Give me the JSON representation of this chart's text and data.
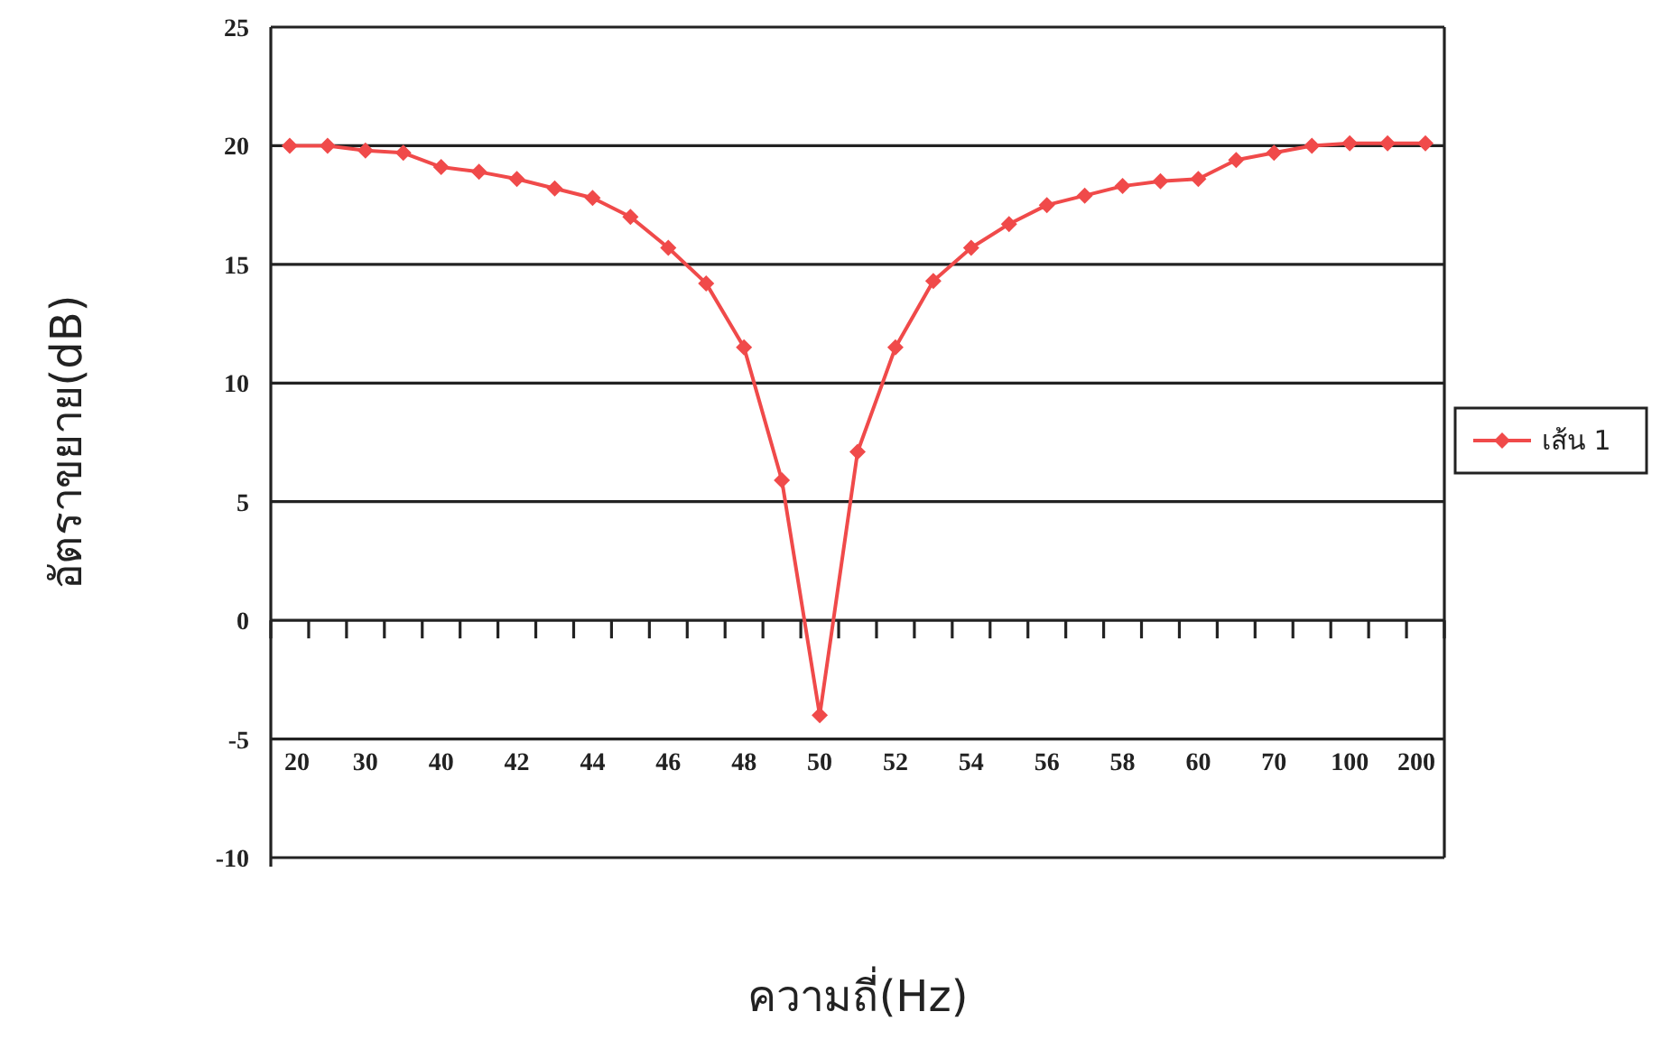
{
  "chart_data": {
    "type": "line",
    "xlabel": "ความถี่(Hz)",
    "ylabel": "อัตราขยาย(dB)",
    "categories": [
      "20",
      null,
      "30",
      null,
      "40",
      null,
      "42",
      null,
      "44",
      null,
      "46",
      null,
      "48",
      null,
      "50",
      null,
      "52",
      null,
      "54",
      null,
      "56",
      null,
      "58",
      null,
      "60",
      null,
      "70",
      null,
      "100",
      null,
      "200"
    ],
    "series": [
      {
        "name": "เส้น 1",
        "color": "#f04a4a",
        "values": [
          20,
          20,
          19.8,
          19.7,
          19.1,
          18.9,
          18.6,
          18.2,
          17.8,
          17.0,
          15.7,
          14.2,
          11.5,
          5.9,
          -4,
          7.1,
          11.5,
          14.3,
          15.7,
          16.7,
          17.5,
          17.9,
          18.3,
          18.5,
          18.6,
          19.4,
          19.7,
          20,
          20.1,
          20.1,
          20.1
        ]
      }
    ],
    "ylim": [
      -10,
      25
    ],
    "yticks": [
      -10,
      -5,
      0,
      5,
      10,
      15,
      20,
      25
    ],
    "grid": "y",
    "legend": "right",
    "marker": "diamond"
  }
}
